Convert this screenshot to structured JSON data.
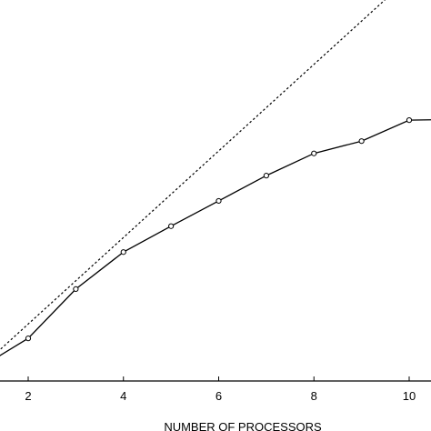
{
  "chart_data": {
    "type": "line",
    "xlabel": "NUMBER OF PROCESSORS",
    "ylabel": "",
    "title": "",
    "xlim": [
      1.4,
      10.5
    ],
    "xticks": [
      2,
      4,
      6,
      8,
      10
    ],
    "grid": false,
    "series": [
      {
        "style": "solid",
        "marker": "circle",
        "x": [
          1,
          2,
          3,
          4,
          5,
          6,
          7,
          8,
          9,
          10,
          11
        ],
        "y": [
          1.0,
          1.47,
          2.27,
          2.87,
          3.29,
          3.7,
          4.11,
          4.47,
          4.67,
          5.01,
          5.02
        ]
      },
      {
        "style": "dotted",
        "marker": "none",
        "x": [
          1,
          11
        ],
        "y": [
          1.0,
          8.02
        ]
      }
    ]
  }
}
